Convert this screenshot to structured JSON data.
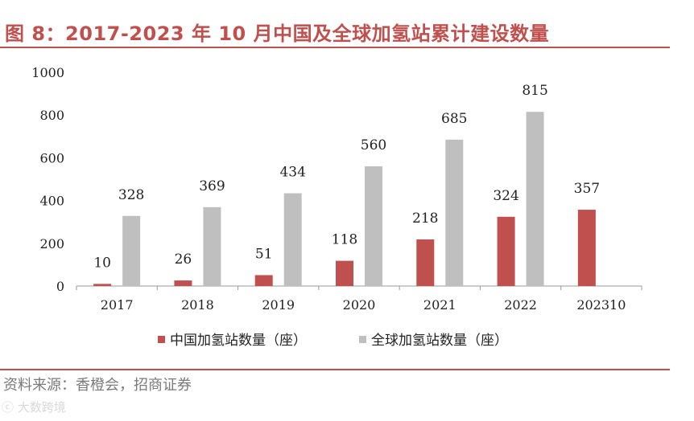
{
  "header": {
    "title": "图 8：2017-2023 年 10 月中国及全球加氢站累计建设数量"
  },
  "footer": {
    "source": "资料来源：香橙会，招商证券",
    "watermark": "大数跨境"
  },
  "colors": {
    "china": "#c0504d",
    "global": "#bfbfbf",
    "accent": "#c0504d"
  },
  "chart_data": {
    "type": "bar",
    "title": "2017-2023 年 10 月中国及全球加氢站累计建设数量",
    "categories": [
      "2017",
      "2018",
      "2019",
      "2020",
      "2021",
      "2022",
      "202310"
    ],
    "series": [
      {
        "name": "中国加氢站数量（座）",
        "values": [
          10,
          26,
          51,
          118,
          218,
          324,
          357
        ]
      },
      {
        "name": "全球加氢站数量（座）",
        "values": [
          328,
          369,
          434,
          560,
          685,
          815,
          null
        ]
      }
    ],
    "yticks": [
      0,
      200,
      400,
      600,
      800,
      1000
    ],
    "ylim": [
      0,
      1000
    ],
    "xlabel": "",
    "ylabel": "",
    "legend_position": "bottom"
  }
}
